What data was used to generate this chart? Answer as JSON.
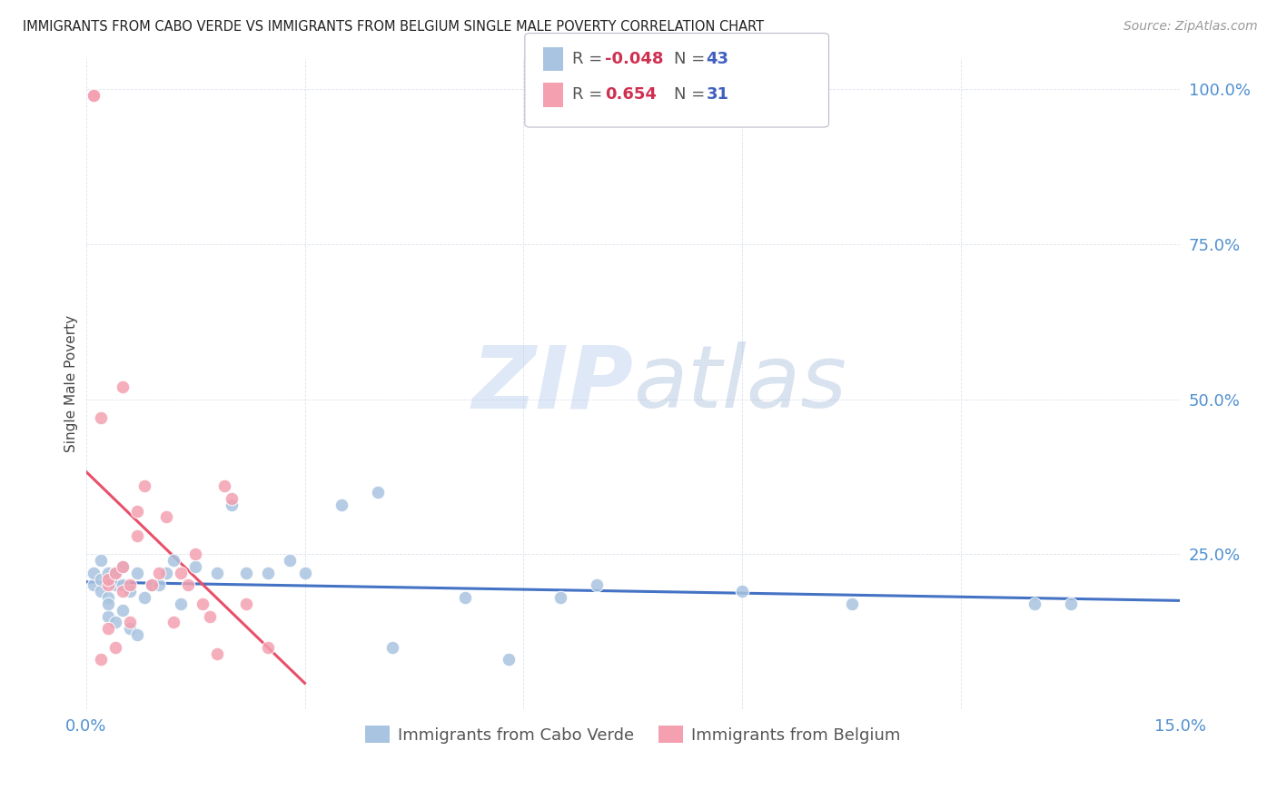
{
  "title": "IMMIGRANTS FROM CABO VERDE VS IMMIGRANTS FROM BELGIUM SINGLE MALE POVERTY CORRELATION CHART",
  "source": "Source: ZipAtlas.com",
  "ylabel": "Single Male Poverty",
  "xlim": [
    0.0,
    0.15
  ],
  "ylim": [
    0.0,
    1.05
  ],
  "cabo_verde_color": "#a8c4e0",
  "belgium_color": "#f4a0b0",
  "trend_cabo_verde_color": "#4472c4",
  "trend_belgium_color": "#e8506a",
  "watermark": "ZIPatlas",
  "watermark_color_zip": "#c8d8f0",
  "watermark_color_atlas": "#a0b8d8",
  "legend_R_cabo": "-0.048",
  "legend_N_cabo": "43",
  "legend_R_belgium": "0.654",
  "legend_N_belgium": "31",
  "cabo_verde_x": [
    0.001,
    0.001,
    0.002,
    0.002,
    0.002,
    0.003,
    0.003,
    0.003,
    0.003,
    0.004,
    0.004,
    0.004,
    0.005,
    0.005,
    0.005,
    0.006,
    0.006,
    0.007,
    0.007,
    0.008,
    0.009,
    0.01,
    0.011,
    0.012,
    0.013,
    0.015,
    0.018,
    0.02,
    0.022,
    0.025,
    0.028,
    0.03,
    0.035,
    0.04,
    0.042,
    0.052,
    0.058,
    0.065,
    0.07,
    0.09,
    0.105,
    0.13,
    0.135
  ],
  "cabo_verde_y": [
    0.2,
    0.22,
    0.19,
    0.21,
    0.24,
    0.18,
    0.22,
    0.15,
    0.17,
    0.2,
    0.14,
    0.22,
    0.2,
    0.16,
    0.23,
    0.19,
    0.13,
    0.22,
    0.12,
    0.18,
    0.2,
    0.2,
    0.22,
    0.24,
    0.17,
    0.23,
    0.22,
    0.33,
    0.22,
    0.22,
    0.24,
    0.22,
    0.33,
    0.35,
    0.1,
    0.18,
    0.08,
    0.18,
    0.2,
    0.19,
    0.17,
    0.17,
    0.17
  ],
  "belgium_x": [
    0.001,
    0.001,
    0.002,
    0.002,
    0.003,
    0.003,
    0.003,
    0.004,
    0.004,
    0.005,
    0.005,
    0.005,
    0.006,
    0.006,
    0.007,
    0.007,
    0.008,
    0.009,
    0.01,
    0.011,
    0.012,
    0.013,
    0.014,
    0.015,
    0.016,
    0.017,
    0.018,
    0.019,
    0.02,
    0.022,
    0.025
  ],
  "belgium_y": [
    0.99,
    0.99,
    0.47,
    0.08,
    0.2,
    0.21,
    0.13,
    0.22,
    0.1,
    0.52,
    0.19,
    0.23,
    0.2,
    0.14,
    0.28,
    0.32,
    0.36,
    0.2,
    0.22,
    0.31,
    0.14,
    0.22,
    0.2,
    0.25,
    0.17,
    0.15,
    0.09,
    0.36,
    0.34,
    0.17,
    0.1
  ]
}
